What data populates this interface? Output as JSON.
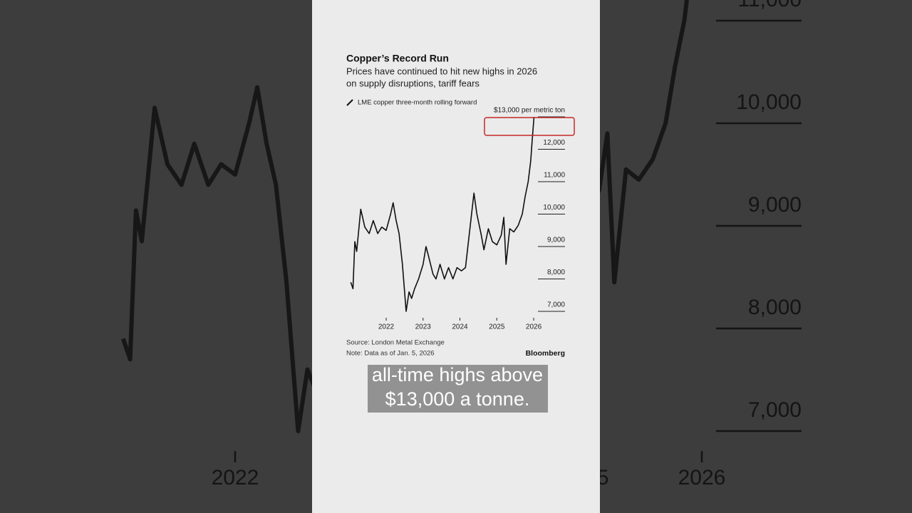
{
  "chart_data": {
    "type": "line",
    "title": "Copper’s Record Run",
    "subtitle": [
      "Prices have continued to hit new highs in 2026",
      "on supply disruptions, tariff fears"
    ],
    "x": [
      2021.04,
      2021.1,
      2021.15,
      2021.2,
      2021.31,
      2021.42,
      2021.54,
      2021.65,
      2021.77,
      2021.88,
      2022.0,
      2022.12,
      2022.19,
      2022.27,
      2022.35,
      2022.44,
      2022.54,
      2022.62,
      2022.69,
      2022.77,
      2022.88,
      2023.0,
      2023.08,
      2023.15,
      2023.27,
      2023.35,
      2023.46,
      2023.58,
      2023.69,
      2023.81,
      2023.92,
      2024.04,
      2024.15,
      2024.27,
      2024.38,
      2024.46,
      2024.58,
      2024.65,
      2024.77,
      2024.88,
      2025.0,
      2025.12,
      2025.19,
      2025.25,
      2025.35,
      2025.46,
      2025.58,
      2025.69,
      2025.77,
      2025.85,
      2025.92,
      2025.96,
      2026.01
    ],
    "series": [
      {
        "name": "LME copper three-month rolling forward",
        "color": "#111111",
        "values": [
          7900,
          7700,
          9150,
          8850,
          10150,
          9600,
          9400,
          9800,
          9400,
          9600,
          9500,
          10000,
          10350,
          9800,
          9400,
          8450,
          7000,
          7600,
          7400,
          7700,
          8000,
          8450,
          9000,
          8700,
          8150,
          8000,
          8450,
          8000,
          8350,
          8000,
          8350,
          8250,
          8350,
          9550,
          10650,
          10000,
          9350,
          8900,
          9550,
          9150,
          9050,
          9350,
          9900,
          8450,
          9550,
          9450,
          9650,
          10000,
          10550,
          11000,
          11650,
          12300,
          13000
        ]
      }
    ],
    "xlim": [
      2021,
      2026.1
    ],
    "xticks": [
      2022,
      2023,
      2024,
      2025,
      2026
    ],
    "ylim": [
      6800,
      13300
    ],
    "yticks": [
      {
        "value": 7000,
        "label": "7,000"
      },
      {
        "value": 8000,
        "label": "8,000"
      },
      {
        "value": 9000,
        "label": "9,000"
      },
      {
        "value": 10000,
        "label": "10,000"
      },
      {
        "value": 11000,
        "label": "11,000"
      },
      {
        "value": 12000,
        "label": "12,000"
      },
      {
        "value": 13000,
        "label": "$13,000 per metric ton"
      }
    ],
    "source": "Source: London Metal Exchange",
    "note": "Note: Data as of Jan. 5, 2026",
    "brand": "Bloomberg"
  },
  "caption": [
    "all-time highs above",
    "$13,000 a tonne."
  ]
}
